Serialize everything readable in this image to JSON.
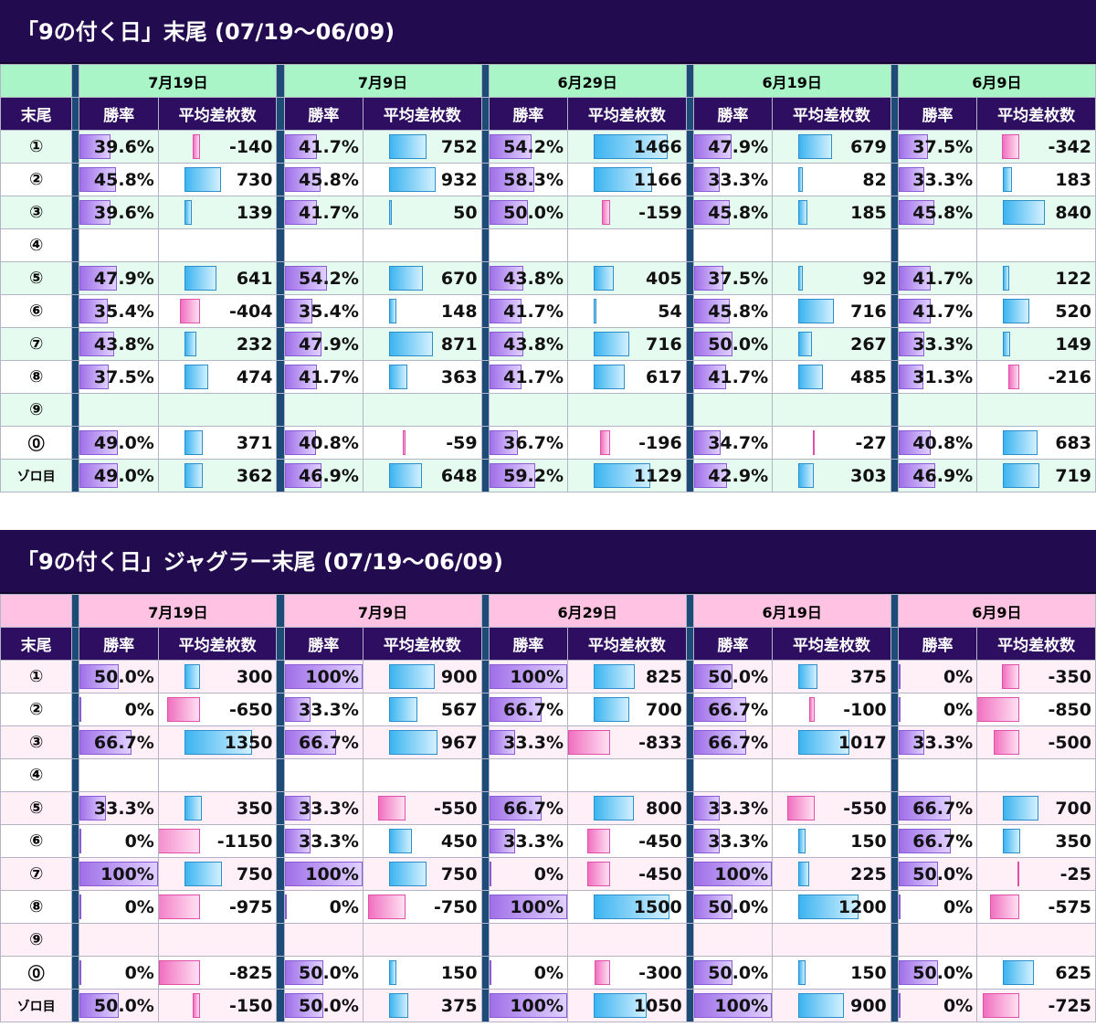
{
  "colors": {
    "title_bg": "#230b50",
    "header_bg": "#2e0e60",
    "date_bg_green": "#aaf5c8",
    "row_tint_green": "#e6fbef",
    "date_bg_pink": "#ffc2e2",
    "row_tint_pink": "#fff0f8",
    "winrate_bar": "#a070e8",
    "positive_bar": "#3cb4f0",
    "negative_bar": "#f070c0"
  },
  "col_headers": {
    "label": "末尾",
    "winrate": "勝率",
    "avg": "平均差枚数"
  },
  "chart_data": [
    {
      "type": "table",
      "title": "「9の付く日」末尾 (07/19～06/09)",
      "dates": [
        "7月19日",
        "7月9日",
        "6月29日",
        "6月19日",
        "6月9日"
      ],
      "rows": [
        {
          "label": "①",
          "cells": [
            [
              "39.6%",
              -140
            ],
            [
              "41.7%",
              752
            ],
            [
              "54.2%",
              1466
            ],
            [
              "47.9%",
              679
            ],
            [
              "37.5%",
              -342
            ]
          ]
        },
        {
          "label": "②",
          "cells": [
            [
              "45.8%",
              730
            ],
            [
              "45.8%",
              932
            ],
            [
              "58.3%",
              1166
            ],
            [
              "33.3%",
              82
            ],
            [
              "33.3%",
              183
            ]
          ]
        },
        {
          "label": "③",
          "cells": [
            [
              "39.6%",
              139
            ],
            [
              "41.7%",
              50
            ],
            [
              "50.0%",
              -159
            ],
            [
              "45.8%",
              185
            ],
            [
              "45.8%",
              840
            ]
          ]
        },
        {
          "label": "④",
          "cells": [
            null,
            null,
            null,
            null,
            null
          ]
        },
        {
          "label": "⑤",
          "cells": [
            [
              "47.9%",
              641
            ],
            [
              "54.2%",
              670
            ],
            [
              "43.8%",
              405
            ],
            [
              "37.5%",
              92
            ],
            [
              "41.7%",
              122
            ]
          ]
        },
        {
          "label": "⑥",
          "cells": [
            [
              "35.4%",
              -404
            ],
            [
              "35.4%",
              148
            ],
            [
              "41.7%",
              54
            ],
            [
              "45.8%",
              716
            ],
            [
              "41.7%",
              520
            ]
          ]
        },
        {
          "label": "⑦",
          "cells": [
            [
              "43.8%",
              232
            ],
            [
              "47.9%",
              871
            ],
            [
              "43.8%",
              716
            ],
            [
              "50.0%",
              267
            ],
            [
              "33.3%",
              149
            ]
          ]
        },
        {
          "label": "⑧",
          "cells": [
            [
              "37.5%",
              474
            ],
            [
              "41.7%",
              363
            ],
            [
              "41.7%",
              617
            ],
            [
              "41.7%",
              485
            ],
            [
              "31.3%",
              -216
            ]
          ]
        },
        {
          "label": "⑨",
          "cells": [
            null,
            null,
            null,
            null,
            null
          ]
        },
        {
          "label": "⓪",
          "cells": [
            [
              "49.0%",
              371
            ],
            [
              "40.8%",
              -59
            ],
            [
              "36.7%",
              -196
            ],
            [
              "34.7%",
              -27
            ],
            [
              "40.8%",
              683
            ]
          ]
        },
        {
          "label": "ゾロ目",
          "cells": [
            [
              "49.0%",
              362
            ],
            [
              "46.9%",
              648
            ],
            [
              "59.2%",
              1129
            ],
            [
              "42.9%",
              303
            ],
            [
              "46.9%",
              719
            ]
          ]
        }
      ]
    },
    {
      "type": "table",
      "title": "「9の付く日」ジャグラー末尾 (07/19～06/09)",
      "dates": [
        "7月19日",
        "7月9日",
        "6月29日",
        "6月19日",
        "6月9日"
      ],
      "rows": [
        {
          "label": "①",
          "cells": [
            [
              "50.0%",
              300
            ],
            [
              "100%",
              900
            ],
            [
              "100%",
              825
            ],
            [
              "50.0%",
              375
            ],
            [
              "0%",
              -350
            ]
          ]
        },
        {
          "label": "②",
          "cells": [
            [
              "0%",
              -650
            ],
            [
              "33.3%",
              567
            ],
            [
              "66.7%",
              700
            ],
            [
              "66.7%",
              -100
            ],
            [
              "0%",
              -850
            ]
          ]
        },
        {
          "label": "③",
          "cells": [
            [
              "66.7%",
              1350
            ],
            [
              "66.7%",
              967
            ],
            [
              "33.3%",
              -833
            ],
            [
              "66.7%",
              1017
            ],
            [
              "33.3%",
              -500
            ]
          ]
        },
        {
          "label": "④",
          "cells": [
            null,
            null,
            null,
            null,
            null
          ]
        },
        {
          "label": "⑤",
          "cells": [
            [
              "33.3%",
              350
            ],
            [
              "33.3%",
              -550
            ],
            [
              "66.7%",
              800
            ],
            [
              "33.3%",
              -550
            ],
            [
              "66.7%",
              700
            ]
          ]
        },
        {
          "label": "⑥",
          "cells": [
            [
              "0%",
              -1150
            ],
            [
              "33.3%",
              450
            ],
            [
              "33.3%",
              -450
            ],
            [
              "33.3%",
              150
            ],
            [
              "66.7%",
              350
            ]
          ]
        },
        {
          "label": "⑦",
          "cells": [
            [
              "100%",
              750
            ],
            [
              "100%",
              750
            ],
            [
              "0%",
              -450
            ],
            [
              "100%",
              225
            ],
            [
              "50.0%",
              -25
            ]
          ]
        },
        {
          "label": "⑧",
          "cells": [
            [
              "0%",
              -975
            ],
            [
              "0%",
              -750
            ],
            [
              "100%",
              1500
            ],
            [
              "50.0%",
              1200
            ],
            [
              "0%",
              -575
            ]
          ]
        },
        {
          "label": "⑨",
          "cells": [
            null,
            null,
            null,
            null,
            null
          ]
        },
        {
          "label": "⓪",
          "cells": [
            [
              "0%",
              -825
            ],
            [
              "50.0%",
              150
            ],
            [
              "0%",
              -300
            ],
            [
              "50.0%",
              150
            ],
            [
              "50.0%",
              625
            ]
          ]
        },
        {
          "label": "ゾロ目",
          "cells": [
            [
              "50.0%",
              -150
            ],
            [
              "50.0%",
              375
            ],
            [
              "100%",
              1050
            ],
            [
              "100%",
              900
            ],
            [
              "0%",
              -725
            ]
          ]
        }
      ]
    }
  ]
}
